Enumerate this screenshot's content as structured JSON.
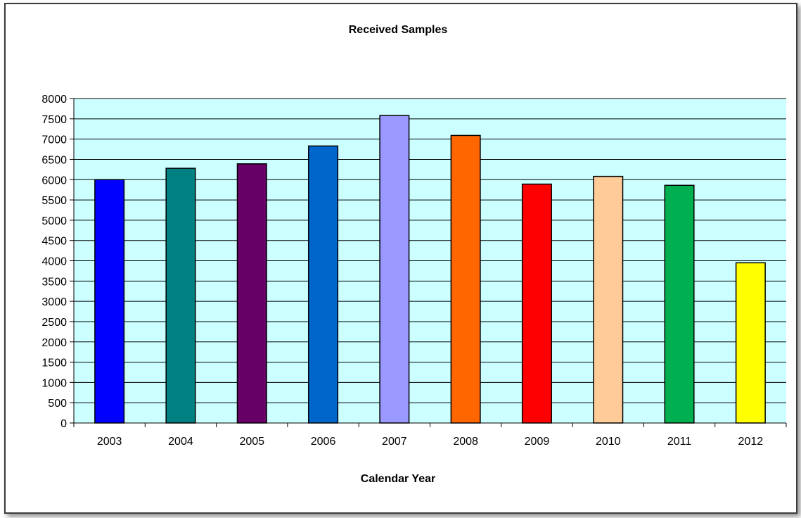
{
  "chart_data": {
    "type": "bar",
    "title": "Received Samples",
    "xlabel": "Calendar Year",
    "ylabel": "",
    "categories": [
      "2003",
      "2004",
      "2005",
      "2006",
      "2007",
      "2008",
      "2009",
      "2010",
      "2011",
      "2012"
    ],
    "values": [
      6000,
      6280,
      6390,
      6830,
      7580,
      7090,
      5890,
      6080,
      5860,
      3950
    ],
    "bar_colors": [
      "#0000ff",
      "#008080",
      "#660066",
      "#0066cc",
      "#9999ff",
      "#ff6600",
      "#ff0000",
      "#ffcc99",
      "#00b050",
      "#ffff00"
    ],
    "ylim": [
      0,
      8000
    ],
    "y_tick_step": 500,
    "grid": true,
    "legend": "none",
    "plot_background": "#ccffff"
  }
}
